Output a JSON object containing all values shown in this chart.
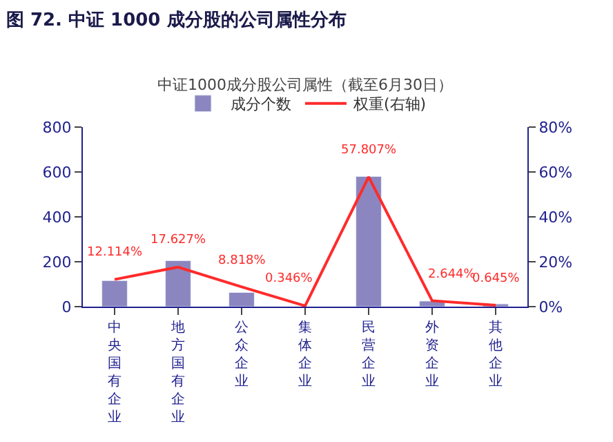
{
  "chart_data": {
    "type": "bar",
    "title": "图 72. 中证 1000 成分股的公司属性分布",
    "subtitle": "中证1000成分股公司属性（截至6月30日）",
    "categories": [
      "中央国有企业",
      "地方国有企业",
      "公众企业",
      "集体企业",
      "民营企业",
      "外资企业",
      "其他企业"
    ],
    "series": [
      {
        "name": "成分个数",
        "color": "#8b86c0",
        "values": [
          116,
          205,
          63,
          null,
          580,
          25,
          12
        ]
      },
      {
        "name": "权重(右轴)",
        "type": "line",
        "axis": "y2",
        "color": "#ff2b2b",
        "values": [
          12.114,
          17.627,
          8.818,
          0.346,
          57.807,
          2.644,
          0.645
        ],
        "value_labels": [
          "12.114%",
          "17.627%",
          "8.818%",
          "0.346%",
          "57.807%",
          "2.644%",
          "0.645%"
        ]
      }
    ],
    "ylim": [
      0,
      800
    ],
    "yticks": [
      0,
      200,
      400,
      600,
      800
    ],
    "y2lim": [
      0,
      80
    ],
    "y2ticks": [
      {
        "value": 0,
        "label": "0%"
      },
      {
        "value": 20,
        "label": "20%"
      },
      {
        "value": 40,
        "label": "40%"
      },
      {
        "value": 60,
        "label": "60%"
      },
      {
        "value": 80,
        "label": "80%"
      }
    ],
    "legend": "top",
    "marker": "none",
    "line_style": "solid"
  }
}
